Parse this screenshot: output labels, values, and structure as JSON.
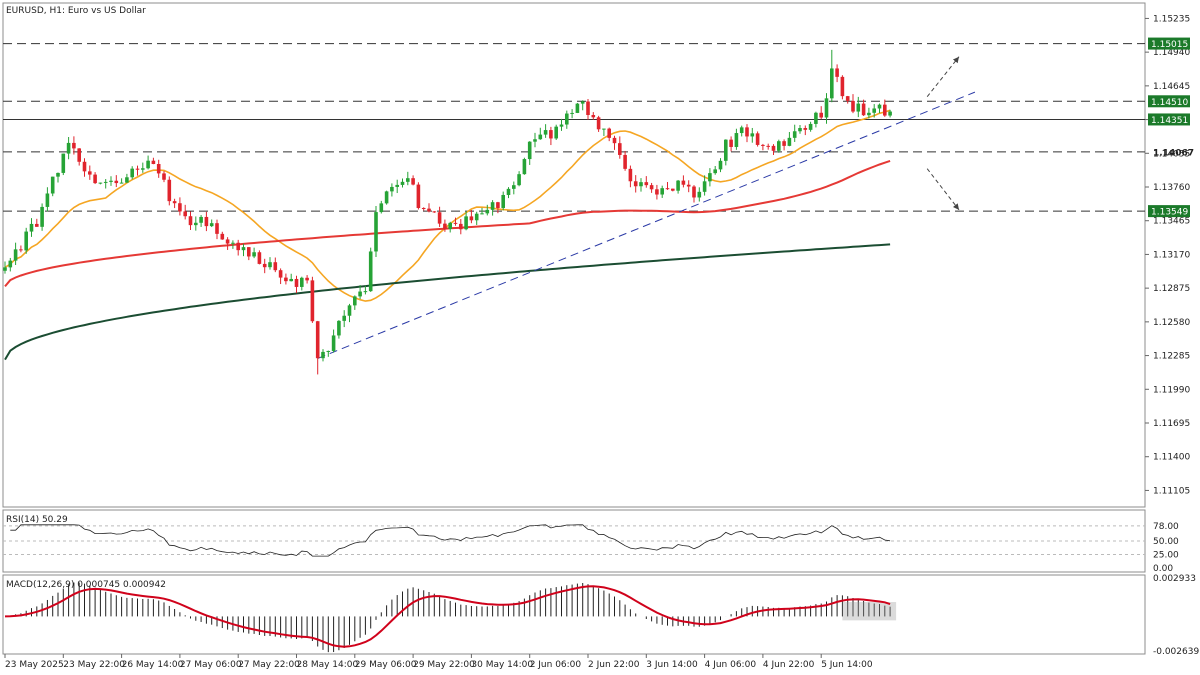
{
  "chart_data": {
    "type": "candlestick",
    "symbol_title": "EURUSD, H1:  Euro vs US Dollar",
    "colors": {
      "bull": "#26a336",
      "bear": "#e0242d",
      "ma_fast": "#f5a623",
      "ma_mid": "#e53935",
      "ma_slow": "#1b4d32",
      "trendline": "#2b3aa6",
      "grid": "#c9c9c9",
      "level_line": "#333333",
      "label_bg": "#1b7a2a",
      "label_text": "#ffffff",
      "macd_signal": "#d0021b",
      "macd_hist": "#222222"
    },
    "price_axis": {
      "ylim": [
        1.1096,
        1.1537
      ],
      "ticks": [
        "1.15235",
        "1.14940",
        "1.14645",
        "1.14350",
        "1.14055",
        "1.13760",
        "1.13465",
        "1.13170",
        "1.12875",
        "1.12580",
        "1.12285",
        "1.11990",
        "1.11695",
        "1.11400",
        "1.11105"
      ]
    },
    "levels": [
      {
        "value": 1.15015,
        "label": "1.15015",
        "style": "dashed",
        "labeled": true
      },
      {
        "value": 1.1451,
        "label": "1.14510",
        "style": "dashed",
        "labeled": true
      },
      {
        "value": 1.14351,
        "label": "1.14351",
        "style": "solid",
        "labeled": true
      },
      {
        "value": 1.14067,
        "label": "1.14067",
        "style": "dashed",
        "labeled": false
      },
      {
        "value": 1.13549,
        "label": "1.13549",
        "style": "dashed",
        "labeled": true
      }
    ],
    "trendline": {
      "from": [
        0,
        1.1226
      ],
      "to": [
        179,
        1.1459
      ]
    },
    "arrows": [
      {
        "from": [
          171,
          1.1455
        ],
        "to": [
          177,
          1.149
        ]
      },
      {
        "from": [
          171,
          1.1392
        ],
        "to": [
          177,
          1.1356
        ]
      }
    ],
    "x_labels": [
      {
        "text": "23 May 2025",
        "index": -73
      },
      {
        "text": "23 May 22:00",
        "index": -62
      },
      {
        "text": "26 May 14:00",
        "index": -51
      },
      {
        "text": "27 May 06:00",
        "index": -40
      },
      {
        "text": "27 May 22:00",
        "index": -29
      },
      {
        "text": "28 May 14:00",
        "index": -18
      },
      {
        "text": "29 May 06:00",
        "index": -7
      },
      {
        "text": "29 May 22:00",
        "index": 4
      },
      {
        "text": "30 May 14:00",
        "index": 15
      },
      {
        "text": "2 Jun 06:00",
        "index": 26
      },
      {
        "text": "2 Jun 22:00",
        "index": 37
      },
      {
        "text": "3 Jun 14:00",
        "index": 48
      },
      {
        "text": "4 Jun 06:00",
        "index": 59
      },
      {
        "text": "4 Jun 22:00",
        "index": 70
      },
      {
        "text": "5 Jun 14:00",
        "index": 81
      }
    ],
    "index_range": [
      -73,
      104
    ],
    "anchors": [
      {
        "i": -73,
        "c": 1.1305
      },
      {
        "i": -67,
        "c": 1.1345
      },
      {
        "i": -64,
        "c": 1.1382
      },
      {
        "i": -61,
        "c": 1.1412
      },
      {
        "i": -58,
        "c": 1.1395
      },
      {
        "i": -55,
        "c": 1.1378
      },
      {
        "i": -51,
        "c": 1.1384
      },
      {
        "i": -45,
        "c": 1.1399
      },
      {
        "i": -42,
        "c": 1.1369
      },
      {
        "i": -38,
        "c": 1.1348
      },
      {
        "i": -34,
        "c": 1.1342
      },
      {
        "i": -28,
        "c": 1.1322
      },
      {
        "i": -22,
        "c": 1.1305
      },
      {
        "i": -19,
        "c": 1.1295
      },
      {
        "i": -16,
        "c": 1.1292
      },
      {
        "i": -14,
        "c": 1.1222
      },
      {
        "i": -11,
        "c": 1.1245
      },
      {
        "i": -9,
        "c": 1.1268
      },
      {
        "i": -5,
        "c": 1.1289
      },
      {
        "i": -3,
        "c": 1.135
      },
      {
        "i": 0,
        "c": 1.1376
      },
      {
        "i": 3,
        "c": 1.1388
      },
      {
        "i": 5,
        "c": 1.1362
      },
      {
        "i": 9,
        "c": 1.1345
      },
      {
        "i": 13,
        "c": 1.1339
      },
      {
        "i": 16,
        "c": 1.1357
      },
      {
        "i": 20,
        "c": 1.1358
      },
      {
        "i": 23,
        "c": 1.1375
      },
      {
        "i": 26,
        "c": 1.1418
      },
      {
        "i": 30,
        "c": 1.1422
      },
      {
        "i": 33,
        "c": 1.1443
      },
      {
        "i": 36,
        "c": 1.1448
      },
      {
        "i": 39,
        "c": 1.1425
      },
      {
        "i": 42,
        "c": 1.1418
      },
      {
        "i": 45,
        "c": 1.1385
      },
      {
        "i": 48,
        "c": 1.1375
      },
      {
        "i": 51,
        "c": 1.1372
      },
      {
        "i": 54,
        "c": 1.138
      },
      {
        "i": 57,
        "c": 1.1368
      },
      {
        "i": 60,
        "c": 1.1385
      },
      {
        "i": 63,
        "c": 1.1412
      },
      {
        "i": 66,
        "c": 1.1425
      },
      {
        "i": 69,
        "c": 1.1418
      },
      {
        "i": 72,
        "c": 1.1412
      },
      {
        "i": 75,
        "c": 1.1418
      },
      {
        "i": 78,
        "c": 1.1428
      },
      {
        "i": 81,
        "c": 1.144
      },
      {
        "i": 83,
        "c": 1.1478
      },
      {
        "i": 86,
        "c": 1.1448
      },
      {
        "i": 89,
        "c": 1.1444
      },
      {
        "i": 92,
        "c": 1.145
      },
      {
        "i": 94,
        "c": 1.1438
      }
    ],
    "moving_averages": [
      {
        "period": 20,
        "color_key": "ma_fast"
      },
      {
        "period": 100,
        "color_key": "ma_mid",
        "warmup_start": 1.1289,
        "warmup_end": 1.1353
      },
      {
        "period": 200,
        "color_key": "ma_slow",
        "warmup_start": 1.1225,
        "warmup_end": 1.1335
      }
    ],
    "rsi": {
      "label": "RSI(14) 50.29",
      "value": 50.29,
      "ylim": [
        0,
        100
      ],
      "ticks": [
        "78.00",
        "50.00",
        "25.00",
        "0.00"
      ],
      "levels": [
        78,
        50,
        25
      ]
    },
    "macd": {
      "label": "MACD(12,26,9) 0.000745 0.000942",
      "main": 0.000745,
      "signal": 0.000942,
      "ylim": [
        -0.002639,
        0.002933
      ],
      "ticks": [
        "0.002933",
        "-0.002639"
      ]
    }
  }
}
